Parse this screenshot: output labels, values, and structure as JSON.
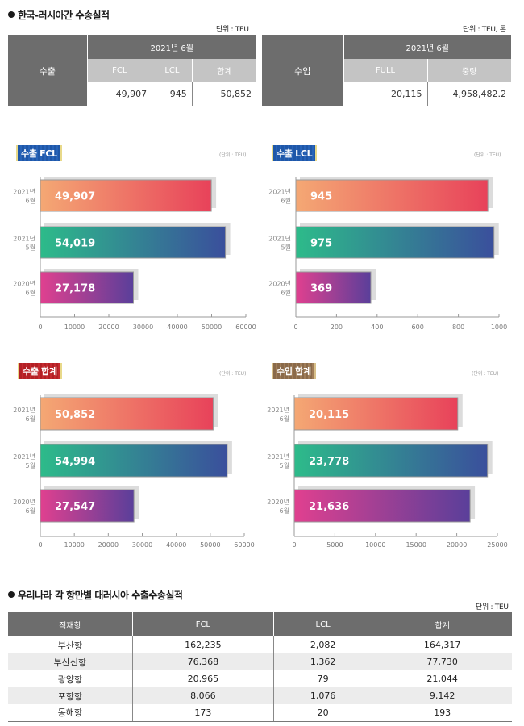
{
  "section1": {
    "title": "한국-러시아간 수송실적",
    "export_table": {
      "unit": "단위 : TEU",
      "row_label": "수출",
      "period": "2021년 6월",
      "columns": [
        "FCL",
        "LCL",
        "합계"
      ],
      "values": [
        "49,907",
        "945",
        "50,852"
      ]
    },
    "import_table": {
      "unit": "단위 : TEU, 톤",
      "row_label": "수입",
      "period": "2021년 6월",
      "columns": [
        "FULL",
        "중량"
      ],
      "values": [
        "20,115",
        "4,958,482.2"
      ]
    }
  },
  "colors": {
    "row1_gradient": [
      "#f4a874",
      "#e8425a"
    ],
    "row2_gradient": [
      "#2dbb8a",
      "#3a4f9c"
    ],
    "row3_gradient": [
      "#e0408f",
      "#5a3f9a"
    ],
    "header_dark": "#6d6d6d",
    "header_light": "#c4c4c4"
  },
  "chart_data": [
    {
      "type": "bar",
      "orientation": "horizontal",
      "title": "수출 FCL",
      "unit": "(단위 : TEU)",
      "categories": [
        [
          "2021년",
          "6월"
        ],
        [
          "2021년",
          "5월"
        ],
        [
          "2020년",
          "6월"
        ]
      ],
      "values": [
        49907,
        54019,
        27178
      ],
      "labels": [
        "49,907",
        "54,019",
        "27,178"
      ],
      "xlim": [
        0,
        60000
      ],
      "ticks": [
        0,
        10000,
        20000,
        30000,
        40000,
        50000,
        60000
      ]
    },
    {
      "type": "bar",
      "orientation": "horizontal",
      "title": "수출 LCL",
      "unit": "(단위 : TEU)",
      "categories": [
        [
          "2021년",
          "6월"
        ],
        [
          "2021년",
          "5월"
        ],
        [
          "2020년",
          "6월"
        ]
      ],
      "values": [
        945,
        975,
        369
      ],
      "labels": [
        "945",
        "975",
        "369"
      ],
      "xlim": [
        0,
        1000
      ],
      "ticks": [
        0,
        200,
        400,
        600,
        800,
        1000
      ]
    },
    {
      "type": "bar",
      "orientation": "horizontal",
      "title": "수출 합계",
      "unit": "(단위 : TEU)",
      "categories": [
        [
          "2021년",
          "6월"
        ],
        [
          "2021년",
          "5월"
        ],
        [
          "2020년",
          "6월"
        ]
      ],
      "values": [
        50852,
        54994,
        27547
      ],
      "labels": [
        "50,852",
        "54,994",
        "27,547"
      ],
      "xlim": [
        0,
        60000
      ],
      "ticks": [
        0,
        10000,
        20000,
        30000,
        40000,
        50000,
        60000
      ]
    },
    {
      "type": "bar",
      "orientation": "horizontal",
      "title": "수입 합계",
      "unit": "(단위 : TEU)",
      "categories": [
        [
          "2021년",
          "6월"
        ],
        [
          "2021년",
          "5월"
        ],
        [
          "2020년",
          "6월"
        ]
      ],
      "values": [
        20115,
        23778,
        21636
      ],
      "labels": [
        "20,115",
        "23,778",
        "21,636"
      ],
      "xlim": [
        0,
        25000
      ],
      "ticks": [
        0,
        5000,
        10000,
        15000,
        20000,
        25000
      ]
    }
  ],
  "section2": {
    "title": "우리나라 각 항만별 대러시아 수출수송실적",
    "unit": "단위 : TEU",
    "headers": [
      "적재항",
      "FCL",
      "LCL",
      "합계"
    ],
    "rows": [
      [
        "부산항",
        "162,235",
        "2,082",
        "164,317"
      ],
      [
        "부산신항",
        "76,368",
        "1,362",
        "77,730"
      ],
      [
        "광양항",
        "20,965",
        "79",
        "21,044"
      ],
      [
        "포항항",
        "8,066",
        "1,076",
        "9,142"
      ],
      [
        "동해항",
        "173",
        "20",
        "193"
      ]
    ]
  }
}
